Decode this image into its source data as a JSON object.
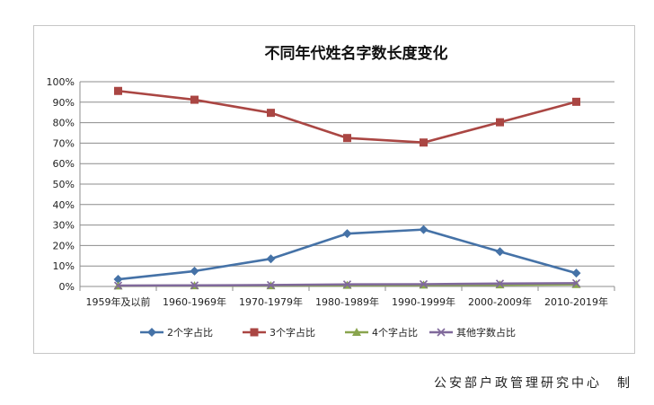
{
  "chart_data": {
    "type": "line",
    "title": "不同年代姓名字数长度变化",
    "categories": [
      "1959年及以前",
      "1960-1969年",
      "1970-1979年",
      "1980-1989年",
      "1990-1999年",
      "2000-2009年",
      "2010-2019年"
    ],
    "ylim": [
      0,
      100
    ],
    "yticks": [
      "0%",
      "10%",
      "20%",
      "30%",
      "40%",
      "50%",
      "60%",
      "70%",
      "80%",
      "90%",
      "100%"
    ],
    "grid": true,
    "legend_position": "bottom",
    "series": [
      {
        "name": "2个字占比",
        "color": "#4572a7",
        "marker": "diamond",
        "values": [
          3.5,
          7.5,
          13.5,
          25.8,
          27.8,
          17.0,
          6.5
        ]
      },
      {
        "name": "3个字占比",
        "color": "#aa4643",
        "marker": "square",
        "values": [
          95.5,
          91.2,
          84.8,
          72.5,
          70.3,
          80.2,
          90.2
        ]
      },
      {
        "name": "4个字占比",
        "color": "#89a54e",
        "marker": "triangle",
        "values": [
          0.3,
          0.4,
          0.4,
          0.6,
          0.7,
          0.8,
          1.0
        ]
      },
      {
        "name": "其他字数占比",
        "color": "#80699b",
        "marker": "x",
        "values": [
          0.4,
          0.5,
          0.7,
          1.0,
          1.1,
          1.4,
          1.6
        ]
      }
    ]
  },
  "source": "公安部户政管理研究中心　制"
}
